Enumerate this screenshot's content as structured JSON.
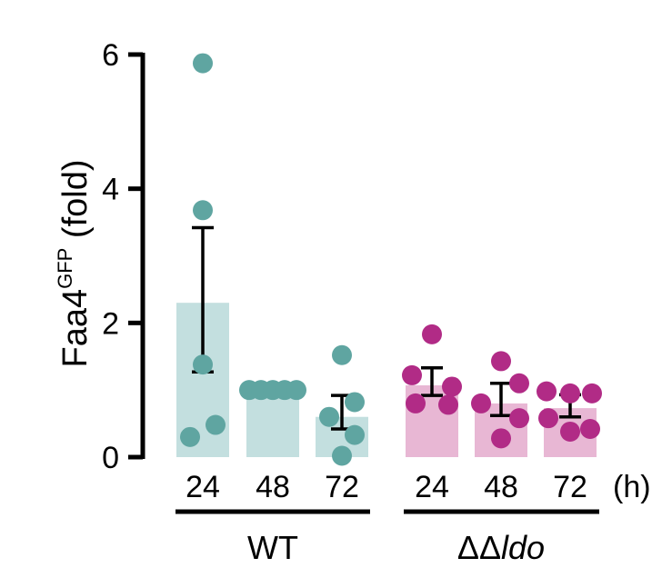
{
  "chart_data": {
    "type": "bar",
    "ylabel": {
      "main": "Faa4",
      "superscript": "GFP",
      "suffix": " (fold)"
    },
    "ylim": [
      0,
      6
    ],
    "yticks": [
      "0",
      "2",
      "4",
      "6"
    ],
    "x_unit": "(h)",
    "colors": {
      "WT": {
        "bar": "#c3dfdf",
        "point": "#5fa5a1"
      },
      "ldo": {
        "bar": "#e8b7d4",
        "point": "#b12b86"
      },
      "axis": "#000000"
    },
    "groups": [
      {
        "name": "WT",
        "name_prefix": "",
        "name_italic": "",
        "key": "WT",
        "categories": [
          "24",
          "48",
          "72"
        ],
        "values": [
          2.3,
          1.0,
          0.6
        ],
        "error_low": [
          1.27,
          1.0,
          0.42
        ],
        "error_high": [
          3.42,
          1.0,
          0.92
        ],
        "points": [
          [
            5.87,
            3.68,
            1.38,
            0.48,
            0.3
          ],
          [
            1.0,
            1.0,
            1.0,
            1.0,
            1.0
          ],
          [
            1.52,
            0.82,
            0.6,
            0.33,
            0.02
          ]
        ]
      },
      {
        "name": "ΔΔldo",
        "name_prefix": "ΔΔ",
        "name_italic": "ldo",
        "key": "ldo",
        "categories": [
          "24",
          "48",
          "72"
        ],
        "values": [
          1.07,
          0.8,
          0.73
        ],
        "error_low": [
          0.92,
          0.62,
          0.6
        ],
        "error_high": [
          1.33,
          1.1,
          0.93
        ],
        "points": [
          [
            1.83,
            1.22,
            1.05,
            0.8,
            0.78
          ],
          [
            1.43,
            1.1,
            0.8,
            0.58,
            0.28
          ],
          [
            0.98,
            0.95,
            0.95,
            0.58,
            0.42,
            0.38
          ]
        ]
      }
    ]
  }
}
